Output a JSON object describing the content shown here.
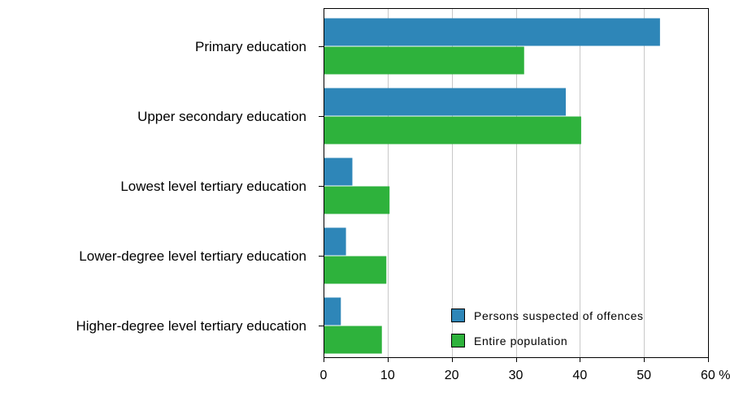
{
  "chart_data": {
    "type": "bar",
    "orientation": "horizontal",
    "title": "",
    "xlabel": "",
    "ylabel": "",
    "categories": [
      "Primary education",
      "Upper secondary education",
      "Lowest level tertiary education",
      "Lower-degree level tertiary education",
      "Higher-degree level tertiary education"
    ],
    "series": [
      {
        "name": "Persons suspected of offences",
        "color": "#2e86b8",
        "values": [
          52.5,
          37.8,
          4.5,
          3.5,
          2.7
        ]
      },
      {
        "name": "Entire population",
        "color": "#2eb23c",
        "values": [
          31.3,
          40.2,
          10.3,
          9.8,
          9.1
        ]
      }
    ],
    "xlim": [
      0,
      60
    ],
    "x_ticks": [
      "0",
      "10",
      "20",
      "30",
      "40",
      "50",
      "60 %"
    ],
    "grid": true,
    "legend": "bottom-right"
  }
}
